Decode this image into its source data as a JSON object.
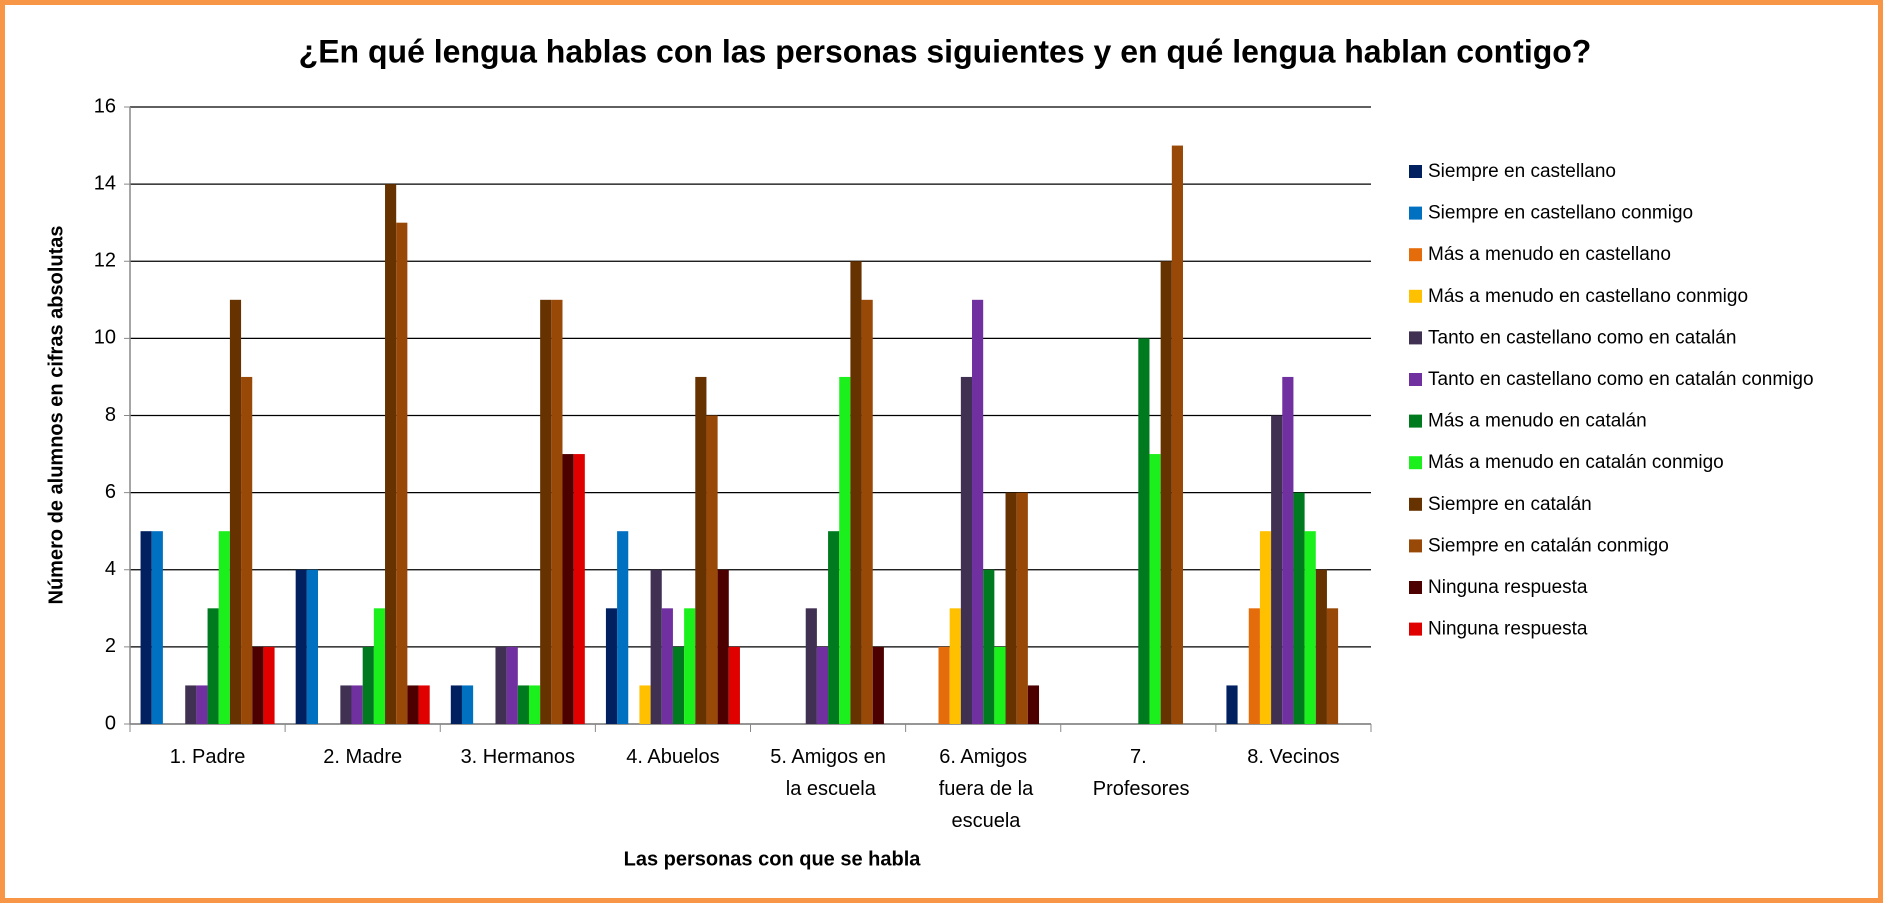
{
  "chart_data": {
    "type": "bar",
    "title": "¿En qué lengua hablas con las personas siguientes y en qué lengua hablan contigo?",
    "xlabel": "Las personas con que se habla",
    "ylabel": "Número de alumnos en cifras absolutas",
    "categories": [
      "1. Padre",
      "2. Madre",
      "3. Hermanos",
      "4. Abuelos",
      "5. Amigos en la escuela",
      "6. Amigos fuera de la escuela",
      "7. Profesores",
      "8. Vecinos"
    ],
    "series": [
      {
        "name": "Siempre en castellano",
        "color": "#002060",
        "values": [
          5,
          4,
          1,
          3,
          0,
          0,
          0,
          1
        ]
      },
      {
        "name": "Siempre en castellano conmigo",
        "color": "#0070c0",
        "values": [
          5,
          4,
          1,
          5,
          0,
          0,
          0,
          0
        ]
      },
      {
        "name": "Más a menudo en castellano",
        "color": "#e46c0a",
        "values": [
          0,
          0,
          0,
          0,
          0,
          2,
          0,
          3
        ]
      },
      {
        "name": "Más a menudo en castellano conmigo",
        "color": "#ffc000",
        "values": [
          0,
          0,
          0,
          1,
          0,
          3,
          0,
          5
        ]
      },
      {
        "name": "Tanto en castellano como en catalán",
        "color": "#403152",
        "values": [
          1,
          1,
          2,
          4,
          3,
          9,
          0,
          8
        ]
      },
      {
        "name": "Tanto en castellano como en catalán conmigo",
        "color": "#7030a0",
        "values": [
          1,
          1,
          2,
          3,
          2,
          11,
          0,
          9
        ]
      },
      {
        "name": "Más a menudo en catalán",
        "color": "#007a1e",
        "values": [
          3,
          2,
          1,
          2,
          5,
          4,
          10,
          6
        ]
      },
      {
        "name": "Más a menudo en catalán conmigo",
        "color": "#1cf01c",
        "values": [
          5,
          3,
          1,
          3,
          9,
          2,
          7,
          5
        ]
      },
      {
        "name": "Siempre en catalán",
        "color": "#663300",
        "values": [
          11,
          14,
          11,
          9,
          12,
          6,
          12,
          4
        ]
      },
      {
        "name": "Siempre en catalán conmigo",
        "color": "#984807",
        "values": [
          9,
          13,
          11,
          8,
          11,
          6,
          15,
          3
        ]
      },
      {
        "name": "Ninguna respuesta",
        "color": "#4d0000",
        "values": [
          2,
          1,
          7,
          4,
          2,
          1,
          0,
          0
        ]
      },
      {
        "name": "Ninguna respuesta",
        "color": "#e00000",
        "values": [
          2,
          1,
          7,
          2,
          0,
          0,
          0,
          0
        ]
      }
    ],
    "ylim": [
      0,
      16
    ],
    "yticks": [
      0,
      2,
      4,
      6,
      8,
      10,
      12,
      14,
      16
    ],
    "grid": true,
    "legend": "right"
  }
}
